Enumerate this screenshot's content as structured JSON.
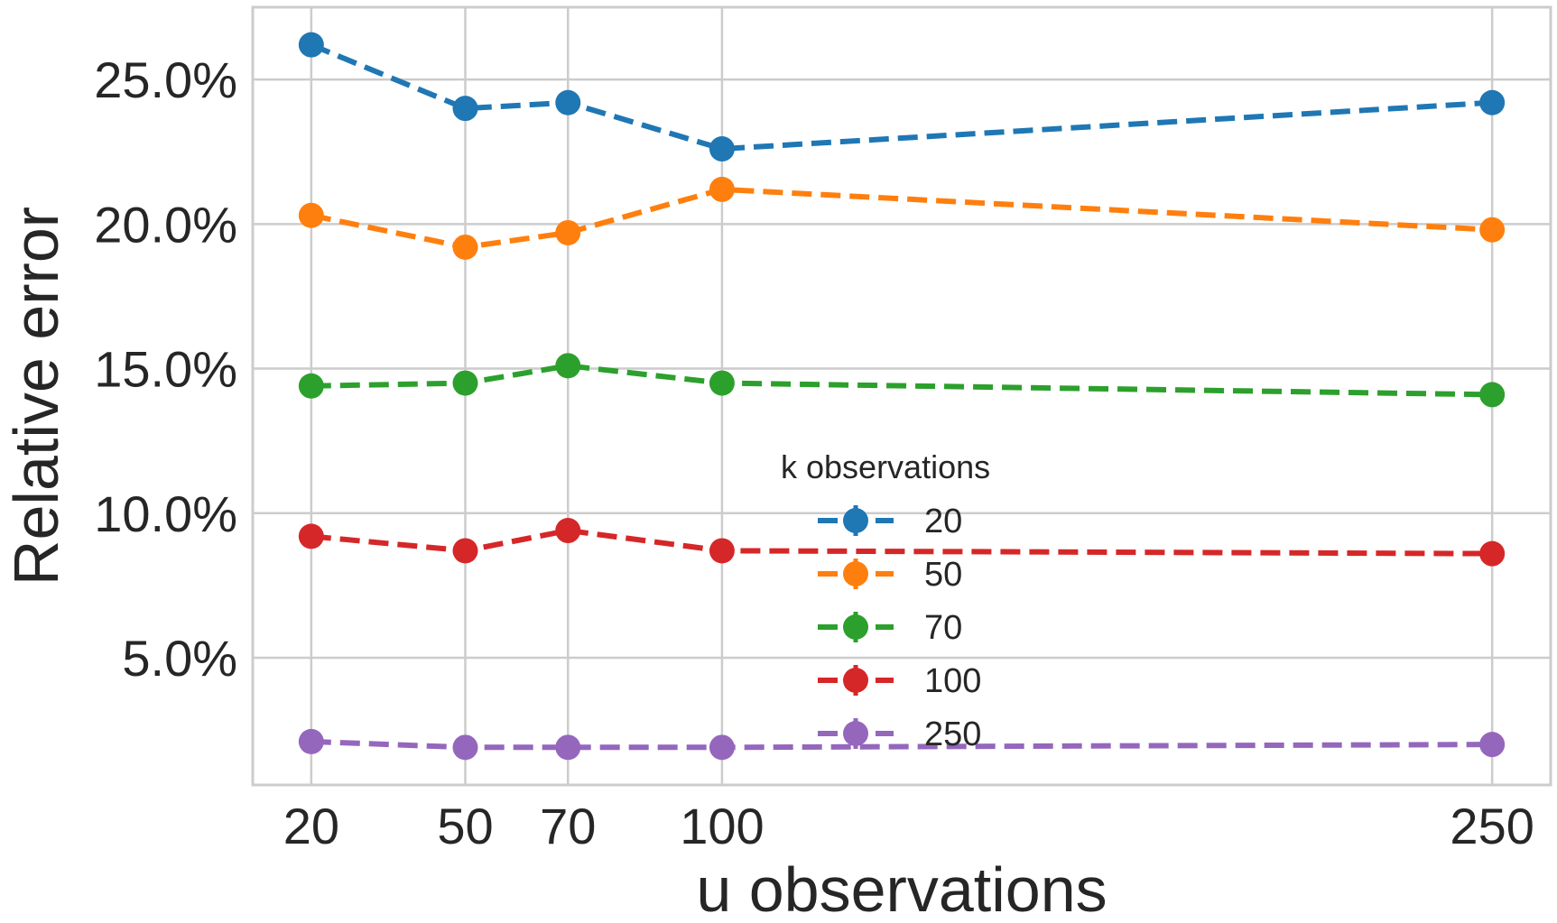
{
  "chart_data": {
    "type": "line",
    "title": "",
    "xlabel": "u observations",
    "ylabel": "Relative error",
    "x": [
      20,
      50,
      70,
      100,
      250
    ],
    "x_tick_labels": [
      "20",
      "50",
      "70",
      "100",
      "250"
    ],
    "y_ticks": [
      5.0,
      10.0,
      15.0,
      20.0,
      25.0
    ],
    "y_tick_labels": [
      "5.0%",
      "10.0%",
      "15.0%",
      "20.0%",
      "25.0%"
    ],
    "xlim": [
      8.6,
      261.4
    ],
    "ylim": [
      0.6,
      27.5
    ],
    "grid": true,
    "line_style": "dashed",
    "marker": "circle",
    "legend": {
      "title": "k observations",
      "placement": "center-right"
    },
    "series": [
      {
        "name": "20",
        "color": "#1f77b4",
        "values": [
          26.2,
          24.0,
          24.2,
          22.6,
          24.2
        ]
      },
      {
        "name": "50",
        "color": "#ff7f0e",
        "values": [
          20.3,
          19.2,
          19.7,
          21.2,
          19.8
        ]
      },
      {
        "name": "70",
        "color": "#2ca02c",
        "values": [
          14.4,
          14.5,
          15.1,
          14.5,
          14.1
        ]
      },
      {
        "name": "100",
        "color": "#d62728",
        "values": [
          9.2,
          8.7,
          9.4,
          8.7,
          8.6
        ]
      },
      {
        "name": "250",
        "color": "#9467bd",
        "values": [
          2.1,
          1.9,
          1.9,
          1.9,
          2.0
        ]
      }
    ]
  }
}
